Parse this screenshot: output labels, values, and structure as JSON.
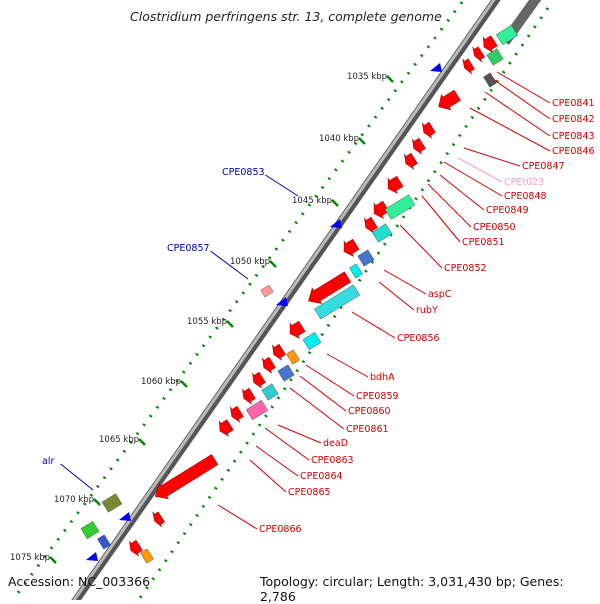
{
  "title": "Clostridium perfringens str. 13, complete genome",
  "footer": {
    "accession": "Accession: NC_003366",
    "topology": "Topology: circular; Length: 3,031,430 bp; Genes: 2,786"
  },
  "colors": {
    "cds": "#ff0000",
    "trna": "#ff99cc",
    "label_red": "#cc0000",
    "label_blue": "#0000aa",
    "backbone": "#777777",
    "kbp_ticks": "#008800"
  },
  "kbp_labels": [
    "1035 kbp",
    "1040 kbp",
    "1045 kbp",
    "1050 kbp",
    "1055 kbp",
    "1060 kbp",
    "1065 kbp",
    "1070 kbp",
    "1075 kbp"
  ],
  "right_genes": [
    "CPE0841",
    "CPE0842",
    "CPE0843",
    "CPE0846",
    "CPE0847",
    "CPEt023",
    "CPE0848",
    "CPE0849",
    "CPE0850",
    "CPE0851",
    "CPE0852",
    "aspC",
    "rubY",
    "CPE0856",
    "bdhA",
    "CPE0859",
    "CPE0860",
    "CPE0861",
    "deaD",
    "CPE0863",
    "CPE0864",
    "CPE0865",
    "CPE0866"
  ],
  "left_genes": [
    "CPE0853",
    "CPE0857",
    "alr"
  ]
}
